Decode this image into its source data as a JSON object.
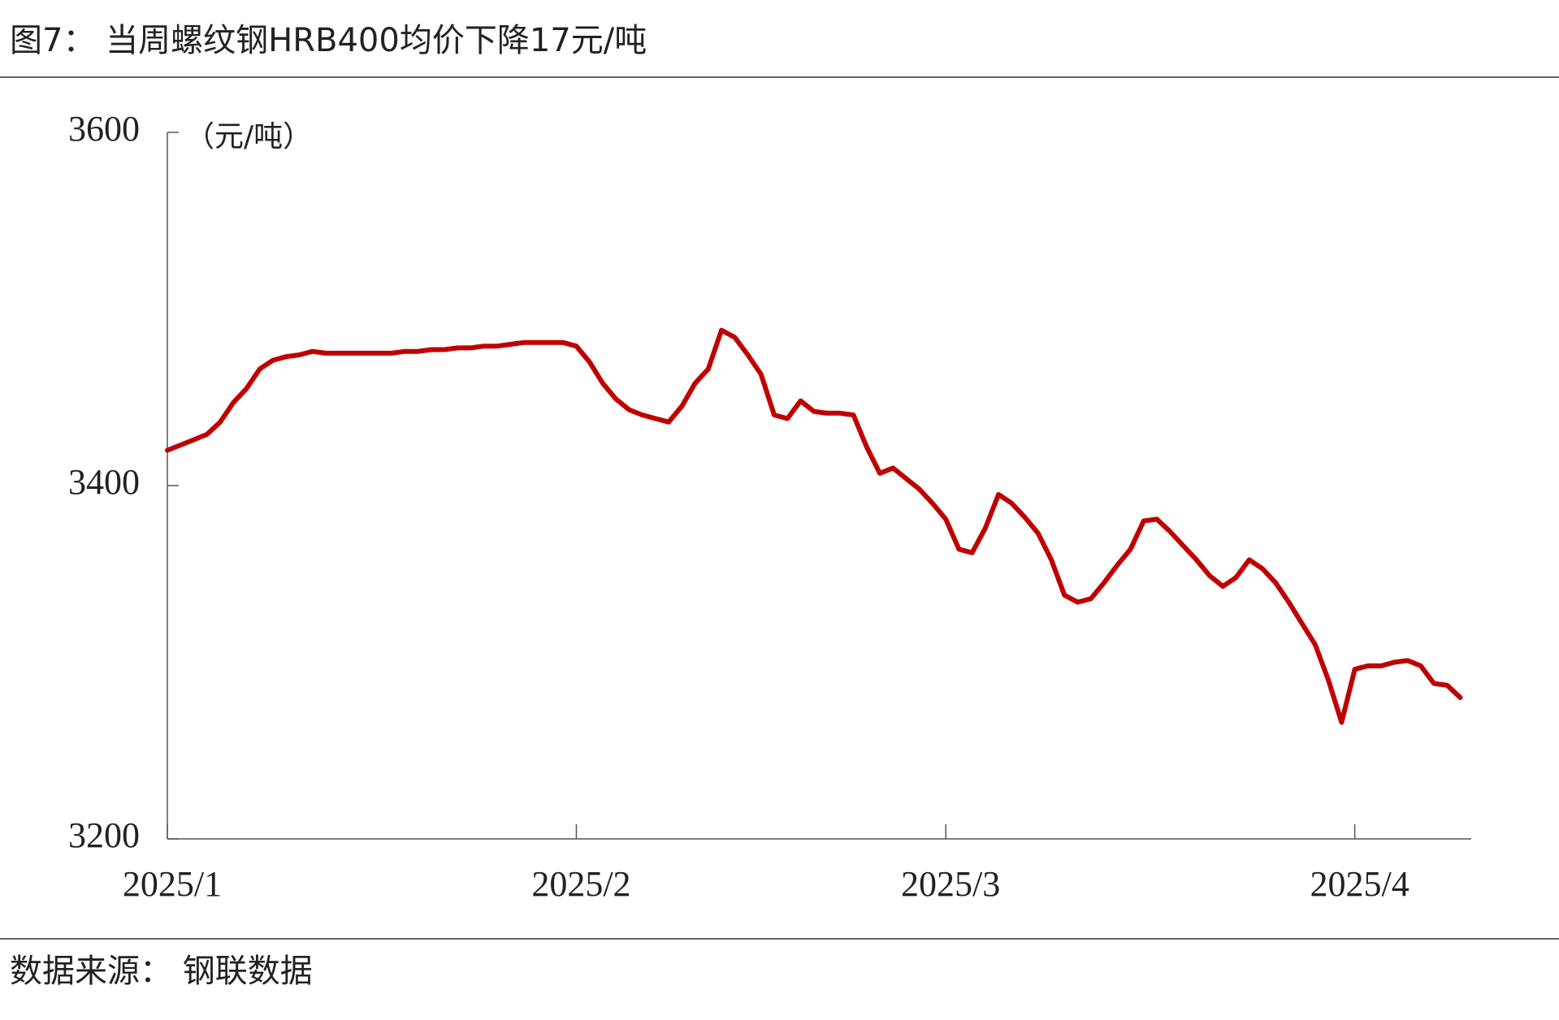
{
  "chart_data": {
    "type": "line",
    "title": "图7：  当周螺纹钢HRB400均价下降17元/吨",
    "y_label": "（元/吨）",
    "source": "数据来源：  钢联数据",
    "color": "#c00000",
    "ylim": [
      3200,
      3600
    ],
    "yticks": [
      3200,
      3400,
      3600
    ],
    "categories": [
      "2025/1",
      null,
      null,
      null,
      null,
      null,
      null,
      null,
      null,
      null,
      null,
      null,
      null,
      null,
      null,
      null,
      null,
      null,
      null,
      null,
      null,
      null,
      null,
      null,
      null,
      null,
      null,
      null,
      null,
      null,
      null,
      "2025/2",
      null,
      null,
      null,
      null,
      null,
      null,
      null,
      null,
      null,
      null,
      null,
      null,
      null,
      null,
      null,
      null,
      null,
      null,
      null,
      null,
      null,
      null,
      null,
      null,
      null,
      null,
      null,
      "2025/3",
      null,
      null,
      null,
      null,
      null,
      null,
      null,
      null,
      null,
      null,
      null,
      null,
      null,
      null,
      null,
      null,
      null,
      null,
      null,
      null,
      null,
      null,
      null,
      null,
      null,
      null,
      null,
      null,
      null,
      null,
      "2025/4",
      null,
      null,
      null,
      null,
      null,
      null,
      null,
      null
    ],
    "values": [
      3420,
      3423,
      3426,
      3429,
      3436,
      3447,
      3455,
      3466,
      3471,
      3473,
      3474,
      3476,
      3475,
      3475,
      3475,
      3475,
      3475,
      3475,
      3476,
      3476,
      3477,
      3477,
      3478,
      3478,
      3479,
      3479,
      3480,
      3481,
      3481,
      3481,
      3481,
      3479,
      3470,
      3458,
      3449,
      3443,
      3440,
      3438,
      3436,
      3445,
      3458,
      3466,
      3488,
      3484,
      3474,
      3463,
      3440,
      3438,
      3448,
      3442,
      3441,
      3441,
      3440,
      3422,
      3407,
      3410,
      3404,
      3398,
      3390,
      3381,
      3364,
      3362,
      3376,
      3395,
      3390,
      3382,
      3373,
      3358,
      3338,
      3334,
      3336,
      3345,
      3355,
      3364,
      3380,
      3381,
      3374,
      3366,
      3358,
      3349,
      3343,
      3348,
      3358,
      3353,
      3345,
      3334,
      3322,
      3310,
      3290,
      3266,
      3296,
      3298,
      3298,
      3300,
      3301,
      3298,
      3288,
      3287,
      3280
    ]
  }
}
